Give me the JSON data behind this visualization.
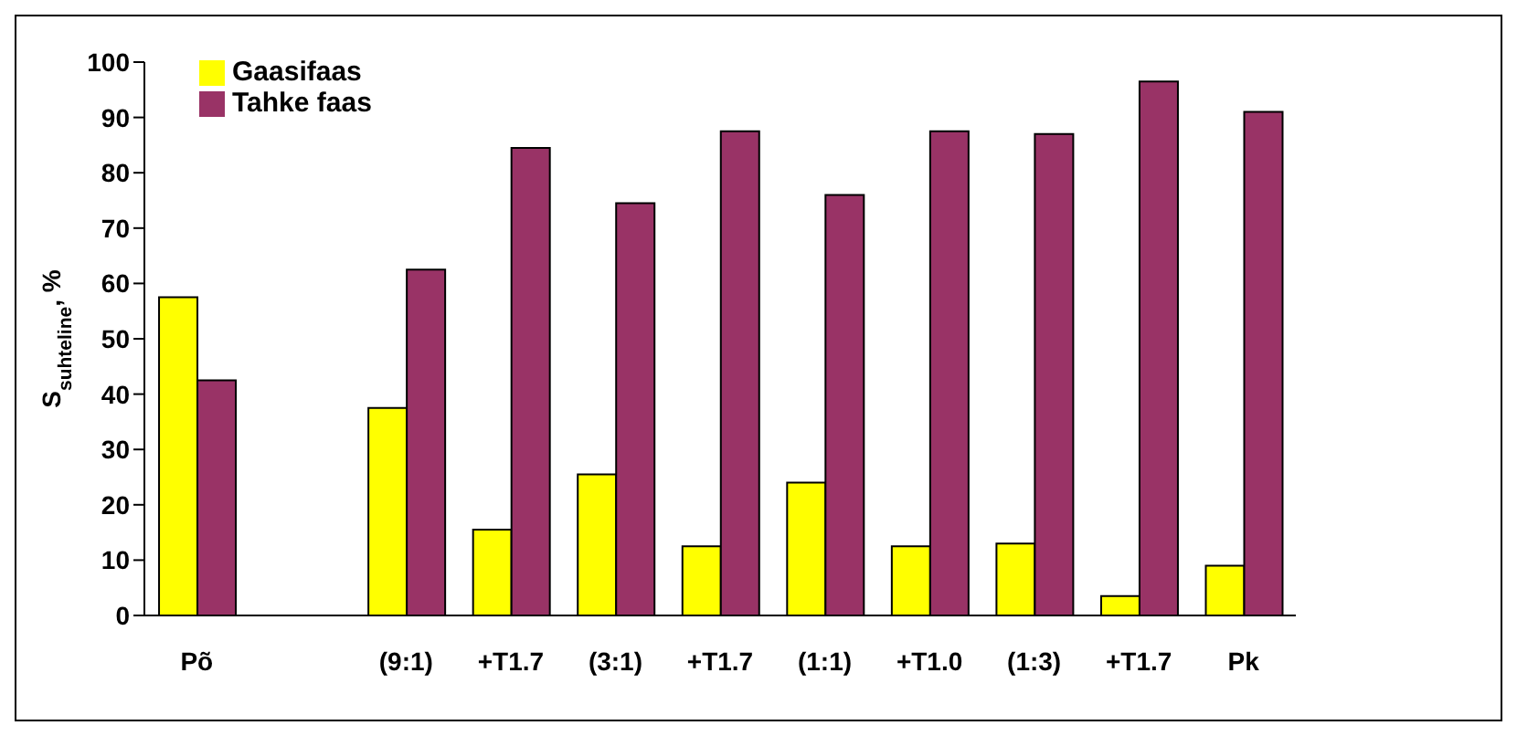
{
  "chart_data": {
    "type": "bar",
    "ylabel": "S$_{suhteline}$, %",
    "categories": [
      "Põ",
      null,
      "(9:1)",
      "+T1.7",
      "(3:1)",
      "+T1.7",
      "(1:1)",
      "+T1.0",
      "(1:3)",
      "+T1.7",
      "Pk"
    ],
    "series": [
      {
        "name": "Gaasifaas",
        "color": "#ffff00",
        "values": [
          57.5,
          null,
          37.5,
          15.5,
          25.5,
          12.5,
          24,
          12.5,
          13,
          3.5,
          9
        ]
      },
      {
        "name": "Tahke faas",
        "color": "#993366",
        "values": [
          42.5,
          null,
          62.5,
          84.5,
          74.5,
          87.5,
          76,
          87.5,
          87,
          96.5,
          91
        ]
      }
    ],
    "ylim": [
      0,
      100
    ],
    "yticks": [
      0,
      10,
      20,
      30,
      40,
      50,
      60,
      70,
      80,
      90,
      100
    ],
    "grid": false,
    "legend": "top left"
  }
}
